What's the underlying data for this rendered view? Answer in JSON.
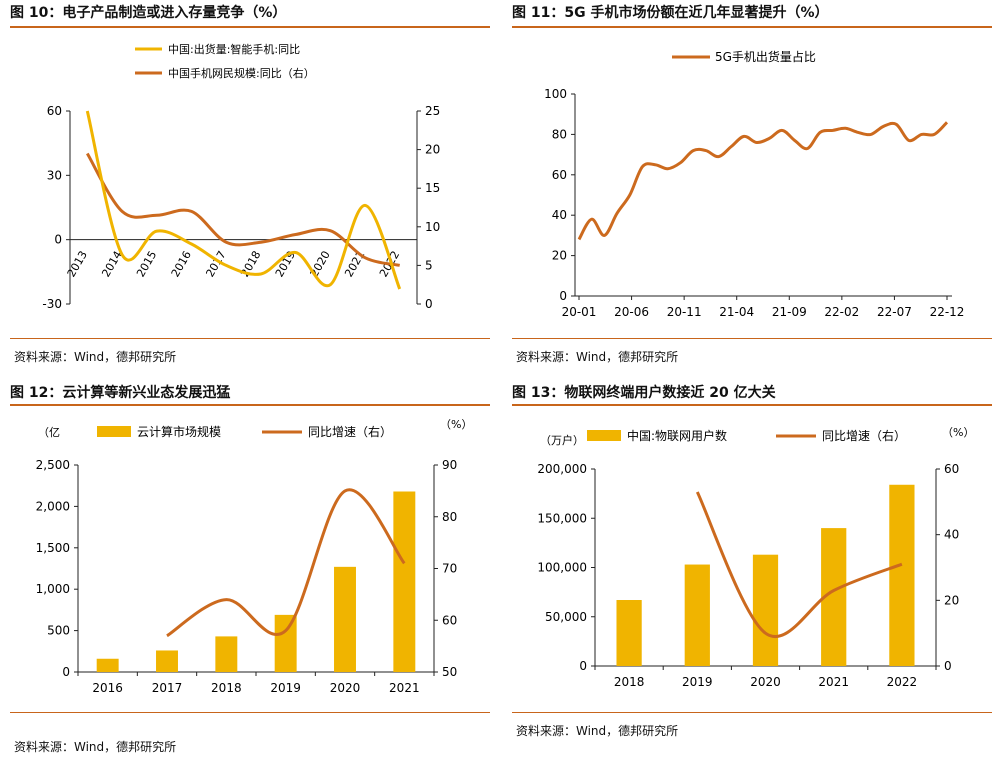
{
  "colors": {
    "orange": "#cc6a1e",
    "gold": "#f0b400",
    "rule": "#c8651b"
  },
  "chart_data": [
    {
      "title": "图 10：电子产品制造或进入存量竞争（%）",
      "type": "line",
      "categories": [
        "2013",
        "2014",
        "2015",
        "2016",
        "2017",
        "2018",
        "2019",
        "2020",
        "2021",
        "2022"
      ],
      "series": [
        {
          "name": "中国:出货量:智能手机:同比",
          "axis": "left",
          "values": [
            60,
            -7,
            4,
            -2,
            -12,
            -16,
            -6,
            -21,
            16,
            -23
          ]
        },
        {
          "name": "中国手机网民规模:同比（右）",
          "axis": "right",
          "values": [
            19.5,
            12,
            11.5,
            12,
            8,
            8,
            9,
            9.5,
            6,
            5
          ]
        }
      ],
      "left_axis": {
        "ticks": [
          "60",
          "30",
          "0",
          "-30"
        ],
        "ylim": [
          -30,
          60
        ]
      },
      "right_axis": {
        "ticks": [
          "25",
          "20",
          "15",
          "10",
          "5",
          "0"
        ],
        "ylim": [
          0,
          25
        ]
      },
      "legend": "top-left",
      "source": "资料来源：Wind，德邦研究所"
    },
    {
      "title": "图 11：5G 手机市场份额在近几年显著提升（%）",
      "type": "line",
      "x_ticks": [
        "20-01",
        "20-06",
        "20-11",
        "21-04",
        "21-09",
        "22-02",
        "22-07",
        "22-12"
      ],
      "series": [
        {
          "name": "5G手机出货量占比",
          "values": [
            28,
            38,
            30,
            41,
            50,
            64,
            65,
            63,
            66,
            72,
            72,
            69,
            74,
            79,
            76,
            78,
            82,
            77,
            73,
            81,
            82,
            83,
            81,
            80,
            84,
            85,
            77,
            80,
            80,
            86
          ]
        }
      ],
      "y_axis": {
        "ticks": [
          "100",
          "80",
          "60",
          "40",
          "20",
          "0"
        ],
        "ylim": [
          0,
          100
        ]
      },
      "legend": "top-center"
    },
    {
      "title": "图 12：云计算等新兴业态发展迅猛",
      "type": "bar",
      "categories": [
        "2016",
        "2017",
        "2018",
        "2019",
        "2020",
        "2021"
      ],
      "series": [
        {
          "name": "云计算市场规模",
          "axis": "left",
          "type": "bar",
          "values": [
            160,
            260,
            430,
            690,
            1270,
            2180
          ]
        },
        {
          "name": "同比增速（右）",
          "axis": "right",
          "type": "line",
          "values": [
            null,
            57,
            64,
            58,
            85,
            71
          ]
        }
      ],
      "left_unit": "（亿",
      "right_unit": "（%）",
      "left_axis": {
        "ticks": [
          "2,500",
          "2,000",
          "1,500",
          "1,000",
          "500",
          "0"
        ],
        "ylim": [
          0,
          2500
        ]
      },
      "right_axis": {
        "ticks": [
          "90",
          "80",
          "70",
          "60",
          "50"
        ],
        "ylim": [
          50,
          90
        ]
      },
      "legend": "top",
      "source": "资料来源：Wind，德邦研究所"
    },
    {
      "title": "图 13：物联网终端用户数接近 20 亿大关",
      "type": "bar",
      "categories": [
        "2018",
        "2019",
        "2020",
        "2021",
        "2022"
      ],
      "series": [
        {
          "name": "中国:物联网用户数",
          "axis": "left",
          "type": "bar",
          "values": [
            67000,
            103000,
            113000,
            140000,
            184000
          ]
        },
        {
          "name": "同比增速（右）",
          "axis": "right",
          "type": "line",
          "values": [
            null,
            53,
            10,
            23,
            31
          ]
        }
      ],
      "left_unit": "（万户）",
      "right_unit": "（%）",
      "left_axis": {
        "ticks": [
          "200,000",
          "150,000",
          "100,000",
          "50,000",
          "0"
        ],
        "ylim": [
          0,
          200000
        ]
      },
      "right_axis": {
        "ticks": [
          "60",
          "40",
          "20",
          "0"
        ],
        "ylim": [
          0,
          60
        ]
      },
      "legend": "top",
      "source": "资料来源：Wind，德邦研究所"
    }
  ]
}
